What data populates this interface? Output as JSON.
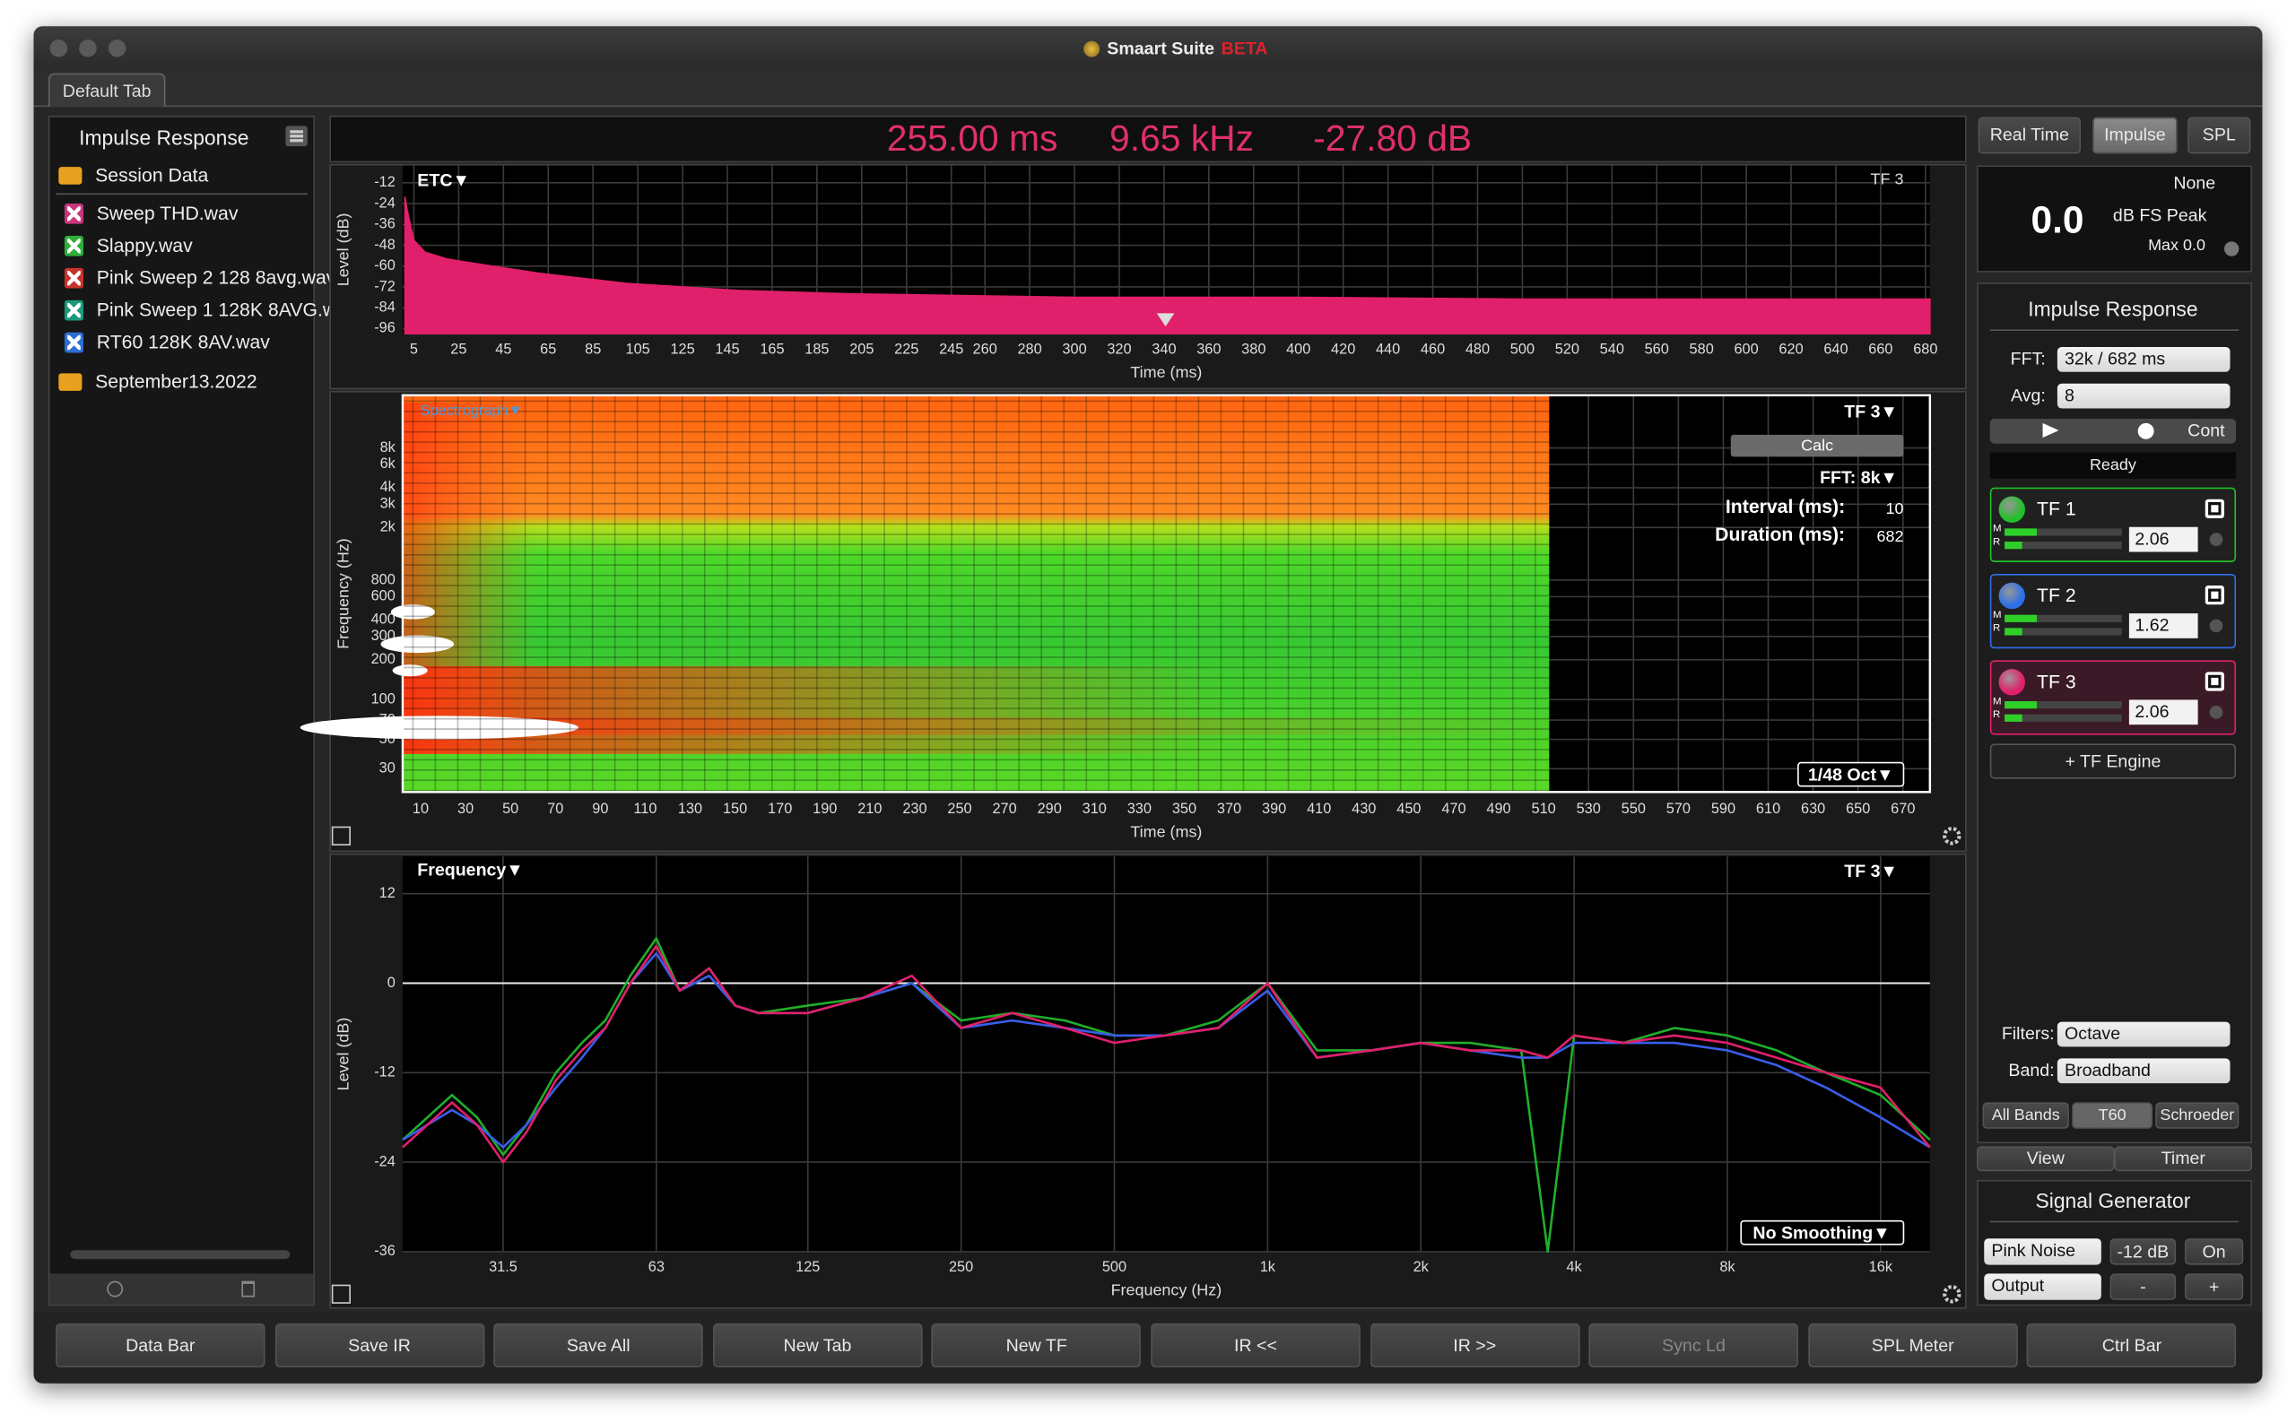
{
  "window": {
    "title": "Smaart Suite",
    "badge": "BETA",
    "tab": "Default Tab"
  },
  "sidebar": {
    "title": "Impulse Response",
    "folders": [
      "Session Data",
      "September13.2022"
    ],
    "files": [
      {
        "name": "Sweep THD.wav",
        "color": "#c8367e"
      },
      {
        "name": "Slappy.wav",
        "color": "#2fae3a"
      },
      {
        "name": "Pink Sweep 2 128 8avg.wav",
        "color": "#c8322a"
      },
      {
        "name": "Pink Sweep 1 128K 8AVG.wav",
        "color": "#1a9a7a"
      },
      {
        "name": "RT60 128K 8AV.wav",
        "color": "#2d6fd6"
      }
    ]
  },
  "readout": [
    "255.00 ms",
    "9.65 kHz",
    "-27.80 dB"
  ],
  "etc": {
    "label": "ETC▼",
    "tf": "TF 3",
    "ylabel": "Level (dB)",
    "xlabel": "Time (ms)",
    "xlim": [
      0,
      682
    ],
    "ylim": [
      -99,
      -2
    ],
    "yticks": [
      -12,
      -24,
      -36,
      -48,
      -60,
      -72,
      -84,
      -96
    ],
    "xticks": [
      5,
      25,
      45,
      65,
      85,
      105,
      125,
      145,
      165,
      185,
      205,
      225,
      245,
      260,
      280,
      300,
      320,
      340,
      360,
      380,
      400,
      420,
      440,
      460,
      480,
      500,
      520,
      540,
      560,
      580,
      600,
      620,
      640,
      660,
      680
    ],
    "trace": {
      "color": "#e0206a",
      "x": [
        1,
        2,
        5,
        10,
        20,
        40,
        60,
        100,
        150,
        200,
        300,
        400,
        500,
        600,
        682
      ],
      "values": [
        -20,
        -28,
        -45,
        -52,
        -56,
        -60,
        -64,
        -70,
        -74,
        -76,
        -78,
        -78,
        -79,
        -79,
        -79
      ]
    }
  },
  "spectrograph": {
    "label": "Spectrograph▼",
    "tf": "TF 3▼",
    "calc": "Calc",
    "fft": "FFT: 8k▼",
    "interval_label": "Interval (ms):",
    "interval": 10,
    "duration_label": "Duration (ms):",
    "duration": 682,
    "resolution": "1/48 Oct▼",
    "ylabel": "Frequency (Hz)",
    "xlabel": "Time (ms)",
    "xlim": [
      2,
      682
    ],
    "ylim": [
      20,
      20000
    ],
    "yticks": [
      30,
      50,
      70,
      100,
      200,
      300,
      400,
      600,
      800,
      {
        "value": 2000,
        "label": "2k"
      },
      {
        "value": 3000,
        "label": "3k"
      },
      {
        "value": 4000,
        "label": "4k"
      },
      {
        "value": 6000,
        "label": "6k"
      },
      {
        "value": 8000,
        "label": "8k"
      }
    ],
    "xticks": [
      10,
      30,
      50,
      70,
      90,
      110,
      130,
      150,
      170,
      190,
      210,
      230,
      250,
      270,
      290,
      310,
      330,
      350,
      370,
      390,
      410,
      430,
      450,
      470,
      490,
      510,
      530,
      550,
      570,
      590,
      610,
      630,
      650,
      670
    ]
  },
  "frequency": {
    "label": "Frequency▼",
    "tf": "TF 3▼",
    "smoothing": "No Smoothing▼",
    "ylabel": "Level (dB)",
    "xlabel": "Frequency (Hz)",
    "xlim": [
      20,
      20000
    ],
    "ylim": [
      -36,
      17
    ],
    "yticks": [
      12,
      0,
      -12,
      -24,
      -36
    ],
    "xticks": [
      31.5,
      63,
      125,
      250,
      500,
      {
        "value": 1000,
        "label": "1k"
      },
      {
        "value": 2000,
        "label": "2k"
      },
      {
        "value": 4000,
        "label": "4k"
      },
      {
        "value": 8000,
        "label": "8k"
      },
      {
        "value": 16000,
        "label": "16k"
      }
    ],
    "x": [
      20,
      25,
      28,
      31.5,
      35,
      40,
      45,
      50,
      56,
      63,
      70,
      80,
      90,
      100,
      125,
      160,
      200,
      250,
      315,
      400,
      500,
      630,
      800,
      1000,
      1250,
      1600,
      2000,
      2500,
      3150,
      3550,
      4000,
      5000,
      6300,
      8000,
      10000,
      12500,
      16000,
      20000
    ],
    "series": [
      {
        "name": "TF 1",
        "color": "#1fae2a",
        "values": [
          -21,
          -15,
          -18,
          -23,
          -19,
          -12,
          -8,
          -5,
          1,
          6,
          -1,
          2,
          -3,
          -4,
          -3,
          -2,
          0,
          -5,
          -4,
          -5,
          -7,
          -7,
          -5,
          0,
          -9,
          -9,
          -8,
          -8,
          -9,
          -36,
          -7,
          -8,
          -6,
          -7,
          -9,
          -12,
          -15,
          -21
        ]
      },
      {
        "name": "TF 2",
        "color": "#3a5ee8",
        "values": [
          -21,
          -17,
          -19,
          -22,
          -19,
          -14,
          -10,
          -6,
          0,
          4,
          -1,
          1,
          -3,
          -4,
          -4,
          -2,
          0,
          -6,
          -5,
          -6,
          -7,
          -7,
          -6,
          -1,
          -10,
          -9,
          -8,
          -9,
          -10,
          -10,
          -8,
          -8,
          -8,
          -9,
          -11,
          -14,
          -18,
          -22
        ]
      },
      {
        "name": "TF 3",
        "color": "#e0206a",
        "values": [
          -22,
          -16,
          -19,
          -24,
          -20,
          -13,
          -9,
          -6,
          0,
          5,
          -1,
          2,
          -3,
          -4,
          -4,
          -2,
          1,
          -6,
          -4,
          -6,
          -8,
          -7,
          -6,
          0,
          -10,
          -9,
          -8,
          -9,
          -9,
          -10,
          -7,
          -8,
          -7,
          -8,
          -10,
          -12,
          -14,
          -22
        ]
      }
    ]
  },
  "right": {
    "modes": [
      "Real Time",
      "Impulse",
      "SPL"
    ],
    "meter": {
      "source": "None",
      "value": "0.0",
      "unit": "dB FS Peak",
      "max": "Max 0.0"
    },
    "ir": {
      "title": "Impulse Response",
      "fft_label": "FFT:",
      "fft": "32k / 682 ms",
      "avg_label": "Avg:",
      "avg": "8",
      "cont": "Cont",
      "status": "Ready",
      "meter_labels": [
        "M",
        "R"
      ],
      "engines": [
        {
          "name": "TF 1",
          "value": "2.06",
          "color": "#22c02a"
        },
        {
          "name": "TF 2",
          "value": "1.62",
          "color": "#2d6fe8"
        },
        {
          "name": "TF 3",
          "value": "2.06",
          "color": "#e0206a"
        }
      ],
      "add": "+ TF Engine",
      "filters_label": "Filters:",
      "filters": "Octave",
      "band_label": "Band:",
      "band": "Broadband",
      "tabs": [
        "All Bands",
        "T60",
        "Schroeder"
      ],
      "view": "View",
      "timer": "Timer"
    },
    "generator": {
      "title": "Signal Generator",
      "signal": "Pink Noise",
      "level": "-12 dB",
      "on": "On",
      "output": "Output",
      "minus": "-",
      "plus": "+"
    }
  },
  "toolbar": [
    "Data Bar",
    "Save IR",
    "Save All",
    "New Tab",
    "New TF",
    "IR <<",
    "IR >>",
    "Sync Ld",
    "SPL Meter",
    "Ctrl Bar"
  ]
}
